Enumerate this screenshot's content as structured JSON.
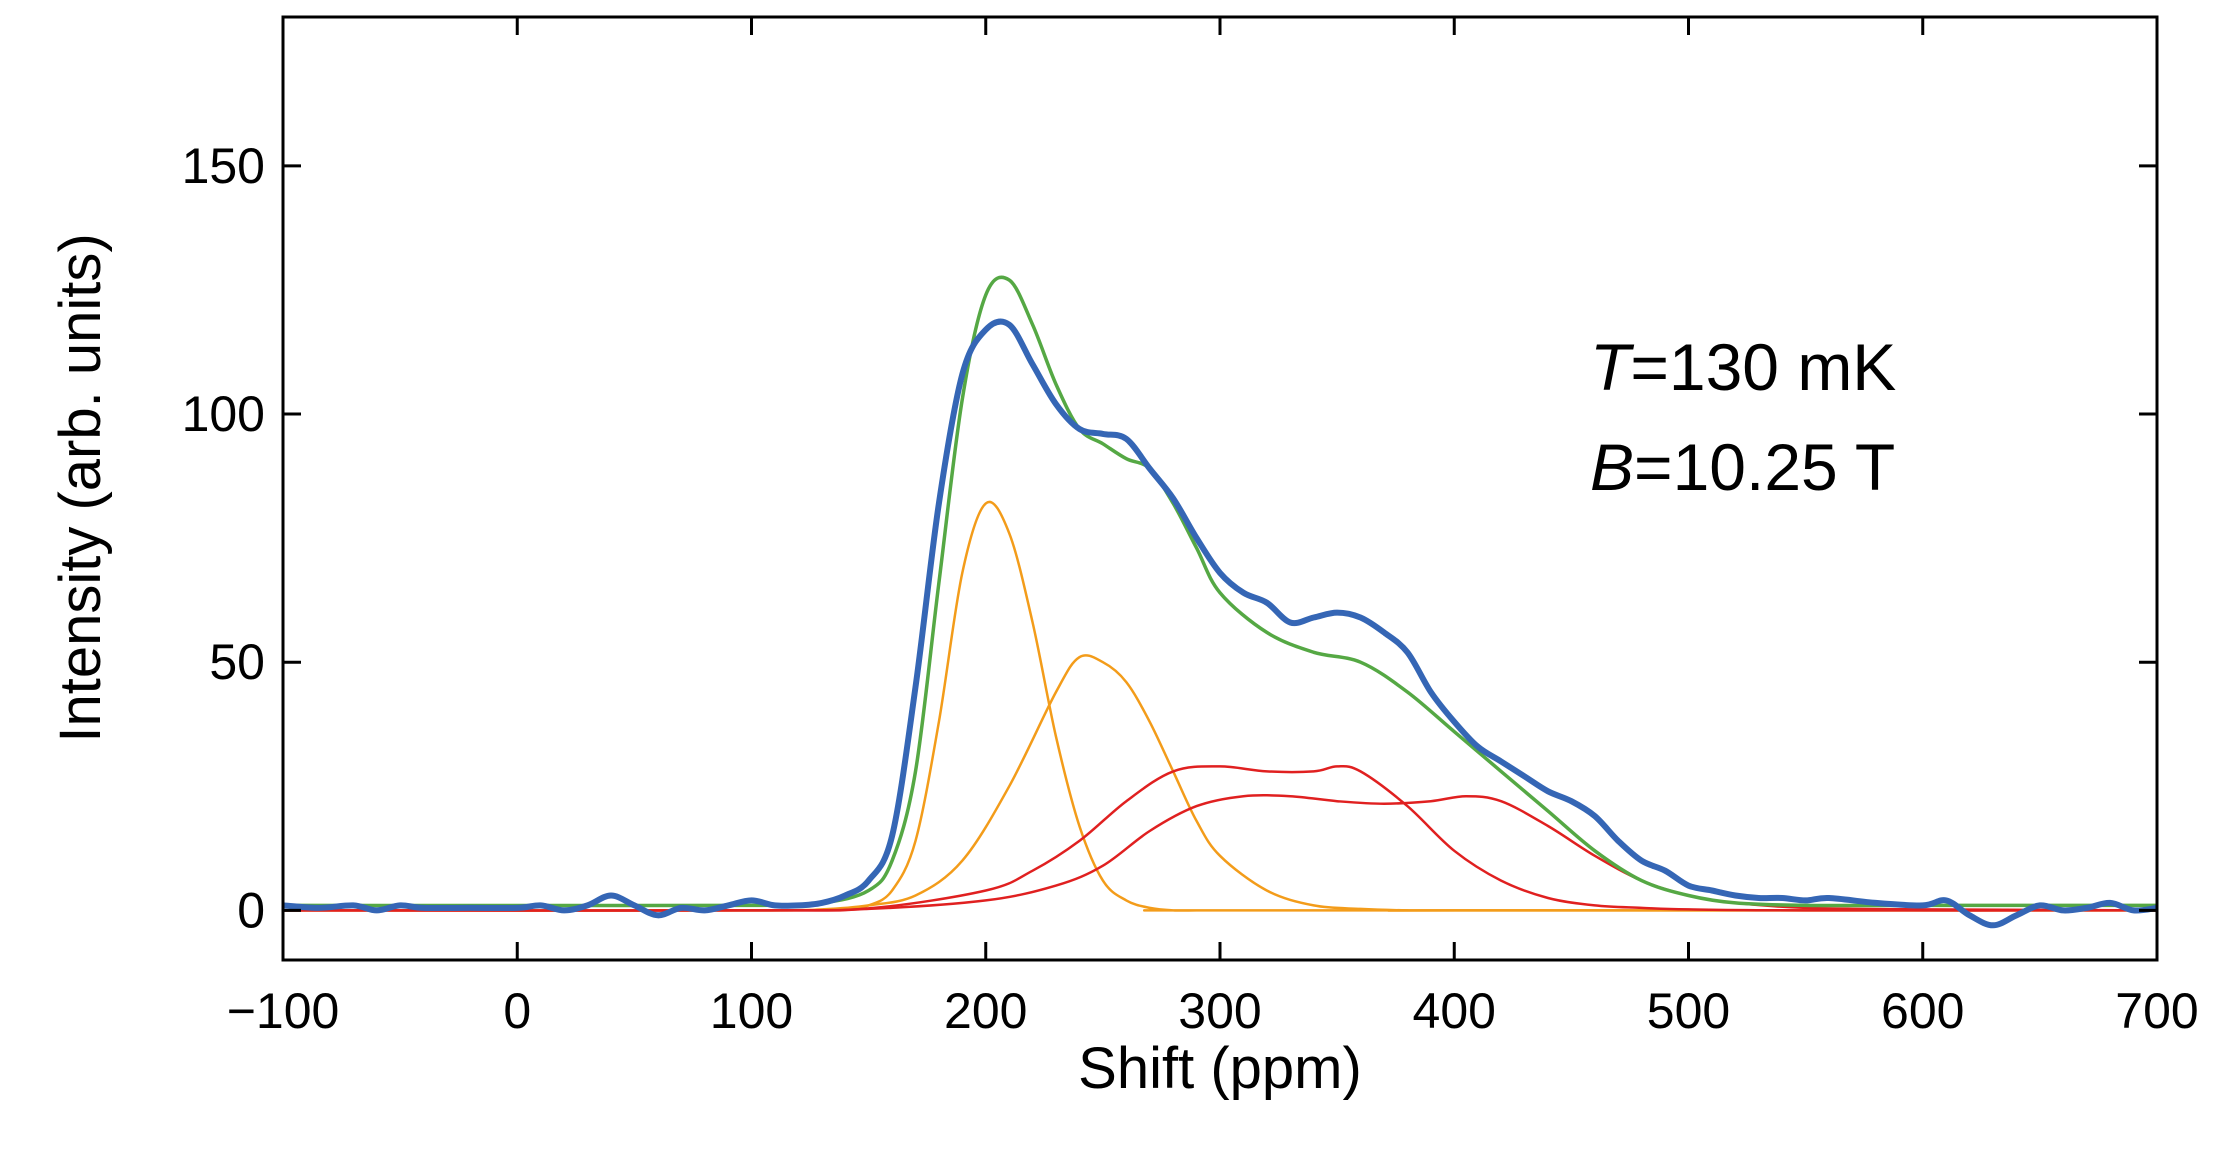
{
  "chart_data": {
    "type": "line",
    "title": "",
    "xlabel": "Shift (ppm)",
    "ylabel": "Intensity (arb. units)",
    "xlim": [
      -100,
      700
    ],
    "ylim": [
      -10,
      180
    ],
    "xticks": [
      -100,
      0,
      100,
      200,
      300,
      400,
      500,
      600,
      700
    ],
    "xtick_labels": [
      "−100",
      "0",
      "100",
      "200",
      "300",
      "400",
      "500",
      "600",
      "700"
    ],
    "yticks": [
      0,
      50,
      100,
      150
    ],
    "ytick_labels": [
      "0",
      "50",
      "100",
      "150"
    ],
    "grid": false,
    "legend": null,
    "annotations": [
      {
        "var": "T",
        "text": "=130 mK"
      },
      {
        "var": "B",
        "text": "=10.25 T"
      }
    ],
    "series": [
      {
        "name": "Orange peak 1",
        "color": "#f39c1a",
        "x": [
          -100,
          100,
          140,
          150,
          160,
          170,
          180,
          190,
          200,
          210,
          220,
          230,
          240,
          250,
          260,
          270,
          280,
          290,
          300,
          700
        ],
        "y": [
          0,
          0,
          0.3,
          1,
          4,
          14,
          38,
          68,
          82,
          76,
          58,
          35,
          17,
          6,
          2,
          0.5,
          0,
          0,
          0,
          0
        ]
      },
      {
        "name": "Orange peak 2",
        "color": "#f39c1a",
        "x": [
          -100,
          100,
          130,
          150,
          170,
          190,
          210,
          230,
          240,
          250,
          260,
          270,
          280,
          290,
          300,
          320,
          340,
          360,
          380,
          400,
          700
        ],
        "y": [
          0,
          0,
          0.2,
          1,
          3,
          10,
          25,
          44,
          51,
          50,
          46,
          38,
          28,
          18,
          11,
          4,
          1,
          0.3,
          0,
          0,
          0
        ]
      },
      {
        "name": "Red component 1",
        "color": "#e02020",
        "x": [
          -100,
          100,
          150,
          200,
          220,
          240,
          260,
          280,
          300,
          320,
          340,
          350,
          360,
          380,
          400,
          420,
          440,
          460,
          480,
          500,
          550,
          700
        ],
        "y": [
          0,
          0,
          0.4,
          4,
          8,
          14,
          22,
          28,
          29,
          28,
          28,
          29,
          28,
          21,
          12,
          6,
          2.5,
          1,
          0.5,
          0.2,
          0,
          0
        ]
      },
      {
        "name": "Red component 2",
        "color": "#e02020",
        "x": [
          -100,
          100,
          150,
          200,
          230,
          250,
          270,
          290,
          310,
          330,
          350,
          370,
          390,
          405,
          420,
          440,
          460,
          480,
          500,
          520,
          550,
          600,
          700
        ],
        "y": [
          0,
          0,
          0.3,
          2,
          5,
          9,
          16,
          21,
          23,
          23,
          22,
          21.5,
          22,
          23,
          22,
          17,
          11,
          6,
          3,
          1.5,
          0.5,
          0.2,
          0
        ]
      },
      {
        "name": "Green fit",
        "color": "#55a844",
        "x": [
          -100,
          100,
          130,
          150,
          160,
          170,
          180,
          190,
          200,
          210,
          220,
          230,
          240,
          250,
          260,
          270,
          280,
          290,
          300,
          320,
          340,
          360,
          380,
          400,
          420,
          440,
          460,
          480,
          500,
          520,
          550,
          600,
          700
        ],
        "y": [
          1,
          1,
          1.5,
          4,
          10,
          28,
          66,
          103,
          124,
          127,
          118,
          106,
          97,
          94,
          91,
          89,
          82,
          73,
          64,
          56,
          52,
          50,
          44,
          36,
          28,
          20,
          12,
          6,
          3,
          1.5,
          1,
          1,
          1
        ]
      },
      {
        "name": "Blue data",
        "color": "#3566b5",
        "x": [
          -100,
          -85,
          -70,
          -60,
          -50,
          -40,
          -20,
          0,
          10,
          20,
          30,
          40,
          50,
          60,
          70,
          80,
          90,
          100,
          110,
          120,
          130,
          140,
          150,
          160,
          170,
          180,
          190,
          200,
          210,
          220,
          230,
          240,
          250,
          260,
          270,
          280,
          290,
          300,
          310,
          320,
          330,
          340,
          350,
          360,
          370,
          380,
          390,
          400,
          410,
          420,
          430,
          440,
          450,
          460,
          470,
          480,
          490,
          500,
          510,
          520,
          530,
          540,
          550,
          560,
          580,
          600,
          610,
          620,
          630,
          640,
          650,
          660,
          670,
          680,
          690,
          700
        ],
        "y": [
          1,
          0.5,
          1,
          0,
          1,
          0.5,
          0.5,
          0.5,
          1,
          0,
          1,
          3,
          1,
          -1,
          0.5,
          0,
          1,
          2,
          1,
          1,
          1.5,
          3,
          6,
          15,
          45,
          82,
          108,
          117,
          118,
          110,
          102,
          97,
          96,
          95,
          89,
          83,
          75,
          68,
          64,
          62,
          58,
          59,
          60,
          59,
          56,
          52,
          44,
          38,
          33,
          30,
          27,
          24,
          22,
          19,
          14,
          10,
          8,
          5,
          4,
          3,
          2.5,
          2.5,
          2,
          2.5,
          1.5,
          1,
          2,
          -1,
          -3,
          -1,
          1,
          0,
          0.5,
          1.5,
          0,
          0.5
        ]
      }
    ]
  }
}
